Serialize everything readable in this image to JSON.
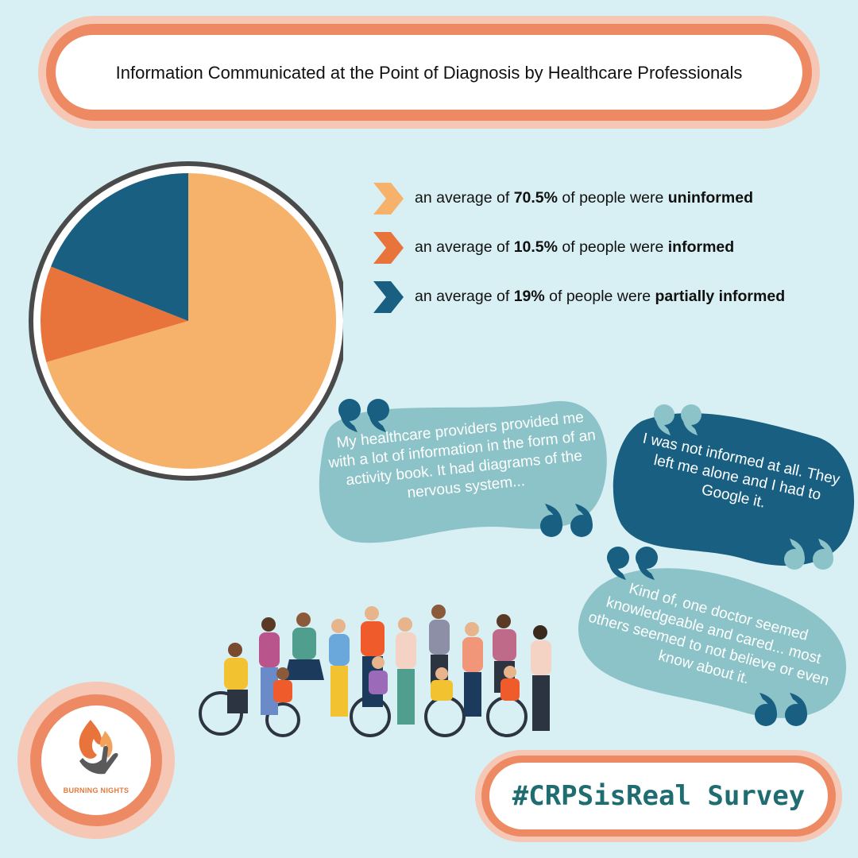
{
  "title": "Information Communicated at the Point of Diagnosis by Healthcare Professionals",
  "colors": {
    "background": "#d8f0f3",
    "uninformed": "#f6b26b",
    "informed": "#e8743b",
    "partially_informed": "#185f82",
    "accent": "#ee8a63",
    "quote_light": "#8cc3c8",
    "quote_dark": "#185f82"
  },
  "chart_data": {
    "type": "pie",
    "title": "Information Communicated at the Point of Diagnosis by Healthcare Professionals",
    "slices": [
      {
        "label": "uninformed",
        "value": 70.5,
        "color": "#f6b26b"
      },
      {
        "label": "informed",
        "value": 10.5,
        "color": "#e8743b"
      },
      {
        "label": "partially informed",
        "value": 19,
        "color": "#185f82"
      }
    ]
  },
  "legend": [
    {
      "prefix": "an average of ",
      "value": "70.5%",
      "middle": " of people were ",
      "label": "uninformed",
      "icon": "chevron-right-icon",
      "color": "#f6b26b"
    },
    {
      "prefix": "an average of ",
      "value": "10.5%",
      "middle": " of people were ",
      "label": "informed",
      "icon": "chevron-right-icon",
      "color": "#e8743b"
    },
    {
      "prefix": "an average of ",
      "value": "19%",
      "middle": " of people were ",
      "label": "partially informed",
      "icon": "chevron-right-icon",
      "color": "#185f82"
    }
  ],
  "quotes": [
    {
      "text": "My healthcare providers provided me with a lot of information in the form of an activity book. It had diagrams of the nervous system...",
      "color": "#8cc3c8"
    },
    {
      "text": "I was not informed at all. They left me alone and I had to Google it.",
      "color": "#185f82"
    },
    {
      "text": "Kind of, one doctor seemed knowledgeable and cared... most others seemed to not believe or even know about it.",
      "color": "#8cc3c8"
    }
  ],
  "hashtag": "#CRPSisReal Survey",
  "logo": {
    "text": "BURNING NIGHTS",
    "icon": "flame-hands-icon"
  }
}
